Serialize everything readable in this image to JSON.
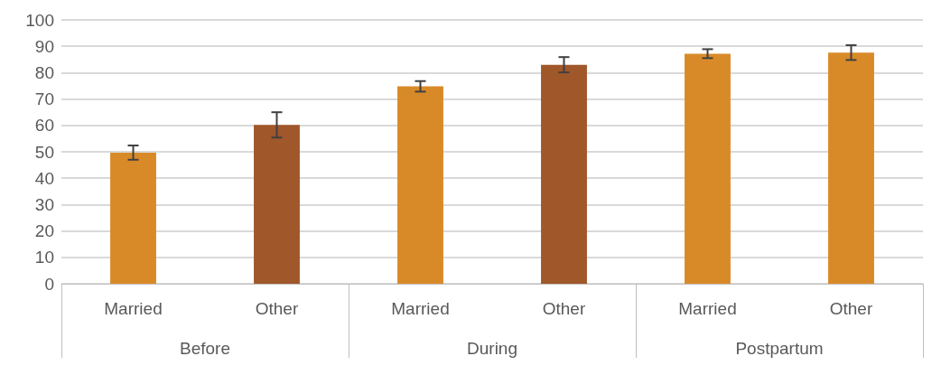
{
  "chart_data": {
    "type": "bar",
    "categories": [
      "Married",
      "Other",
      "Married",
      "Other",
      "Married",
      "Other"
    ],
    "values": [
      49.7,
      60.2,
      74.8,
      83,
      87.2,
      87.6
    ],
    "errors": [
      2.7,
      4.8,
      2,
      2.9,
      1.7,
      2.8
    ],
    "colors": [
      "#d98a28",
      "#a0572a",
      "#d98a28",
      "#a0572a",
      "#d98a28",
      "#d98a28"
    ],
    "annotations": [
      "Before",
      "During",
      "Postpartum"
    ],
    "ylim": [
      0,
      100
    ],
    "yticks": [
      0,
      10,
      20,
      30,
      40,
      50,
      60,
      70,
      80,
      90,
      100
    ],
    "grid": "y"
  }
}
